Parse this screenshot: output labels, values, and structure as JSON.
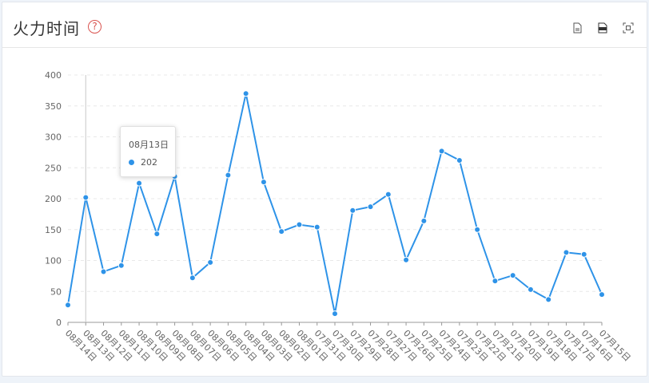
{
  "header": {
    "title": "火力时间",
    "help_icon": "question-circle-icon",
    "tools": [
      "text-export-icon",
      "excel-export-icon",
      "fullscreen-icon"
    ]
  },
  "colors": {
    "line": "#2e93e8",
    "axis": "#666666",
    "grid": "#e8e8e8"
  },
  "tooltip": {
    "date": "08月13日",
    "value": "202"
  },
  "chart_data": {
    "type": "line",
    "title": "",
    "xlabel": "",
    "ylabel": "",
    "ylim": [
      0,
      400
    ],
    "yticks": [
      0,
      50,
      100,
      150,
      200,
      250,
      300,
      350,
      400
    ],
    "grid": true,
    "hover_index": 1,
    "categories": [
      "08月14日",
      "08月13日",
      "08月12日",
      "08月11日",
      "08月10日",
      "08月09日",
      "08月08日",
      "08月07日",
      "08月06日",
      "08月05日",
      "08月04日",
      "08月03日",
      "08月02日",
      "08月01日",
      "07月31日",
      "07月30日",
      "07月29日",
      "07月28日",
      "07月27日",
      "07月26日",
      "07月25日",
      "07月24日",
      "07月23日",
      "07月22日",
      "07月21日",
      "07月20日",
      "07月19日",
      "07月18日",
      "07月17日",
      "07月16日",
      "07月15日"
    ],
    "series": [
      {
        "values": [
          28,
          202,
          82,
          92,
          225,
          143,
          236,
          72,
          97,
          238,
          370,
          227,
          147,
          158,
          154,
          14,
          181,
          187,
          207,
          101,
          164,
          277,
          262,
          150,
          67,
          76,
          53,
          37,
          113,
          110,
          45
        ]
      }
    ]
  }
}
